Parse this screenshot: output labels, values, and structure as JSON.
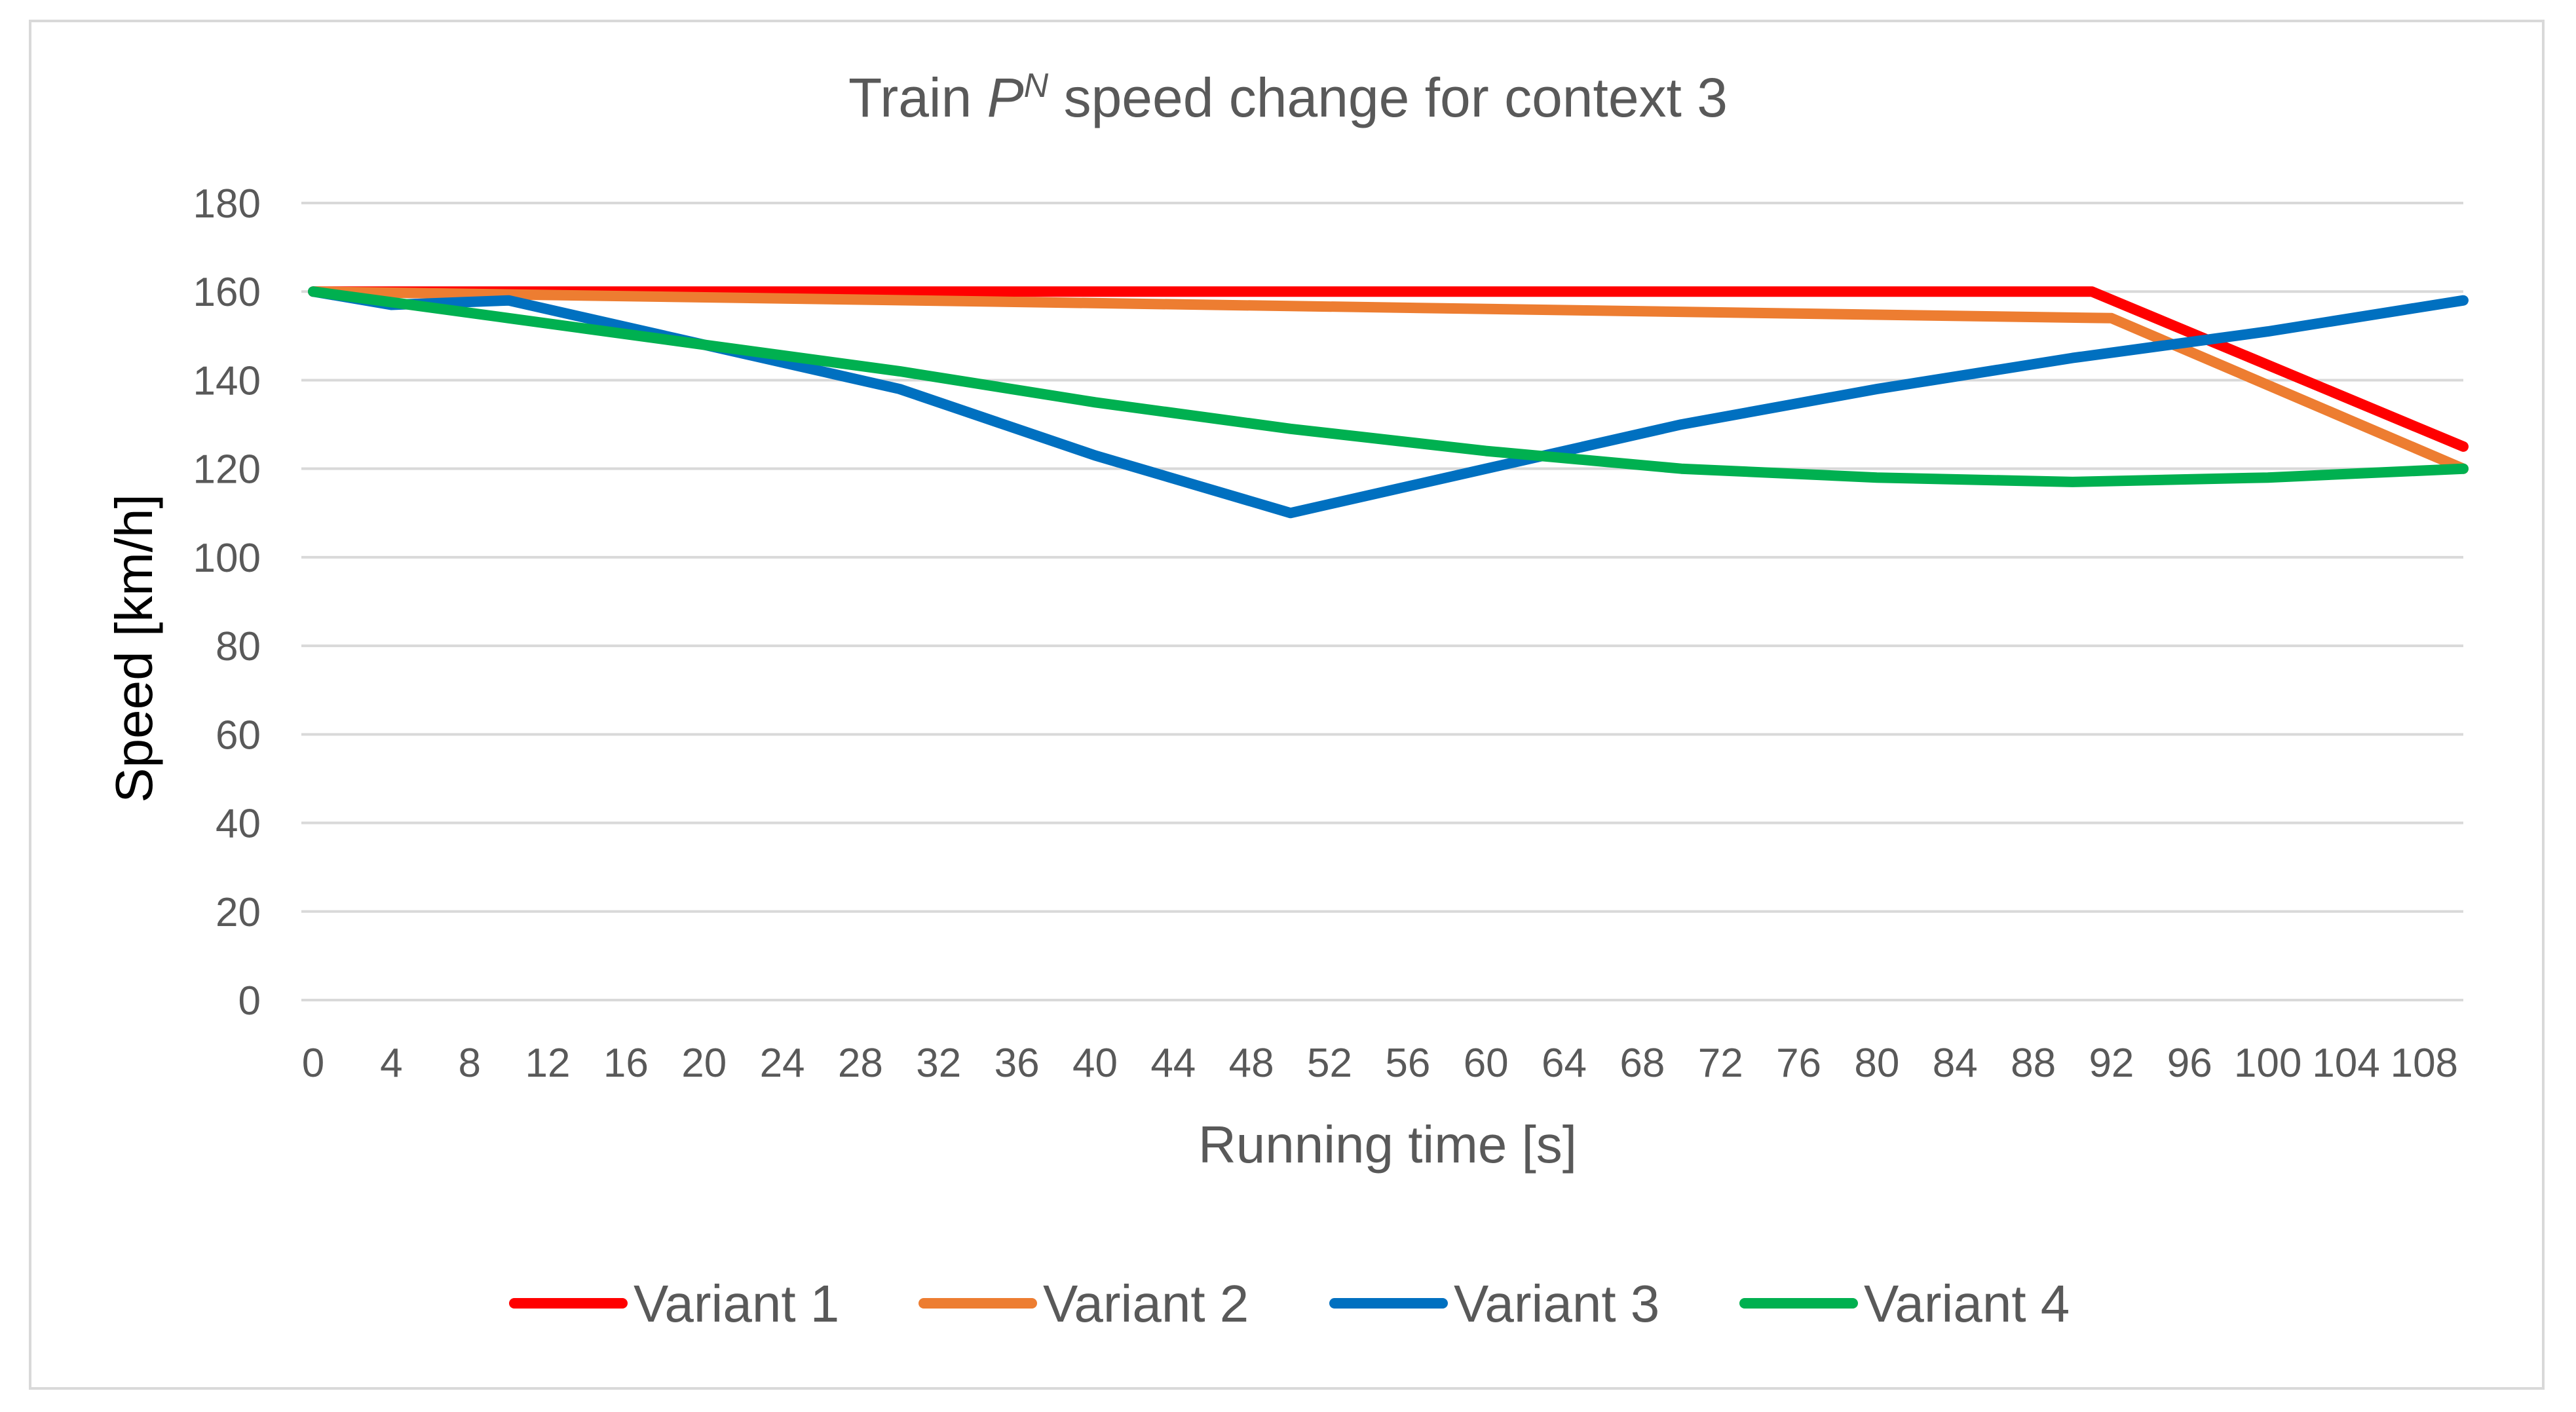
{
  "chart_data": {
    "type": "line",
    "title": {
      "prefix": "Train ",
      "italic": "P",
      "superscript": "N",
      "suffix": " speed change for context  3"
    },
    "xlabel": "Running time [s]",
    "ylabel": "Speed  [km/h]",
    "xlim": [
      0,
      110
    ],
    "ylim": [
      0,
      180
    ],
    "y_ticks": [
      0,
      20,
      40,
      60,
      80,
      100,
      120,
      140,
      160,
      180
    ],
    "x_ticks": [
      0,
      4,
      8,
      12,
      16,
      20,
      24,
      28,
      32,
      36,
      40,
      44,
      48,
      52,
      56,
      60,
      64,
      68,
      72,
      76,
      80,
      84,
      88,
      92,
      96,
      100,
      104,
      108
    ],
    "grid": "horizontal",
    "legend_position": "bottom",
    "series": [
      {
        "name": "Variant 1",
        "color": "#ff0000",
        "points": [
          [
            0,
            160
          ],
          [
            91,
            160
          ],
          [
            110,
            125
          ]
        ]
      },
      {
        "name": "Variant 2",
        "color": "#ed7d31",
        "points": [
          [
            0,
            160
          ],
          [
            92,
            154
          ],
          [
            110,
            120
          ]
        ]
      },
      {
        "name": "Variant 3",
        "color": "#0070c0",
        "points": [
          [
            0,
            160
          ],
          [
            4,
            157
          ],
          [
            10,
            158
          ],
          [
            30,
            138
          ],
          [
            40,
            123
          ],
          [
            50,
            110
          ],
          [
            60,
            120
          ],
          [
            70,
            130
          ],
          [
            80,
            138
          ],
          [
            90,
            145
          ],
          [
            100,
            151
          ],
          [
            110,
            158
          ]
        ]
      },
      {
        "name": "Variant 4",
        "color": "#00b050",
        "points": [
          [
            0,
            160
          ],
          [
            10,
            154
          ],
          [
            20,
            148
          ],
          [
            30,
            142
          ],
          [
            40,
            135
          ],
          [
            50,
            129
          ],
          [
            60,
            124
          ],
          [
            70,
            120
          ],
          [
            80,
            118
          ],
          [
            90,
            117
          ],
          [
            100,
            118
          ],
          [
            110,
            120
          ]
        ]
      }
    ]
  }
}
